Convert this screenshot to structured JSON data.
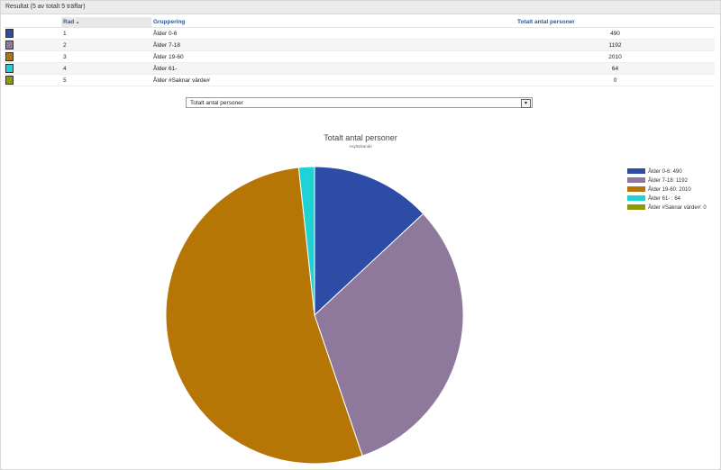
{
  "panel": {
    "header": "Resultat (5 av totalt 5 träffar)"
  },
  "table": {
    "headers": {
      "rad": "Rad",
      "sort_indicator": "▲",
      "grouping": "Gruppering",
      "total": "Totalt antal personer"
    },
    "rows": [
      {
        "rad": "1",
        "grouping": "Ålder 0-6",
        "total": "490",
        "color": "#2c4ca6"
      },
      {
        "rad": "2",
        "grouping": "Ålder 7-18",
        "total": "1192",
        "color": "#8e789c"
      },
      {
        "rad": "3",
        "grouping": "Ålder 19-60",
        "total": "2010",
        "color": "#b57606"
      },
      {
        "rad": "4",
        "grouping": "Ålder 61-",
        "total": "64",
        "color": "#1ed3d3"
      },
      {
        "rad": "5",
        "grouping": "Ålder #Saknar värde#",
        "total": "0",
        "color": "#8e9a06"
      }
    ]
  },
  "measure_select": {
    "value": "Totalt antal personer",
    "arrow": "▾"
  },
  "chart_data": {
    "type": "pie",
    "title": "Totalt antal personer",
    "subtitle": "Asylsökande",
    "categories": [
      "Ålder 0-6",
      "Ålder 7-18",
      "Ålder 19-60",
      "Ålder 61-",
      "Ålder #Saknar värde#"
    ],
    "values": [
      490,
      1192,
      2010,
      64,
      0
    ],
    "colors": [
      "#2c4ca6",
      "#8e789c",
      "#b57606",
      "#1ed3d3",
      "#8e9a06"
    ],
    "legend": [
      "Ålder 0-6: 490",
      "Ålder 7-18: 1192",
      "Ålder 19-60: 2010",
      "Ålder 61- : 64",
      "Ålder #Saknar värde#: 0"
    ],
    "legend_position": "right"
  }
}
